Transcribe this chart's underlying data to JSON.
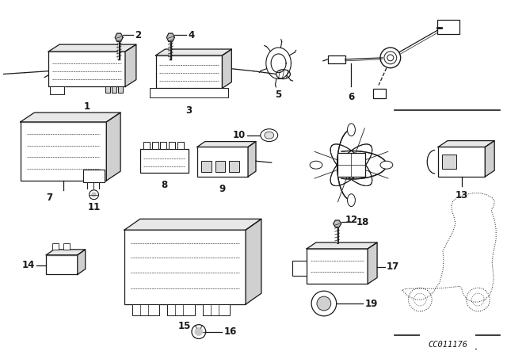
{
  "bg_color": "#ffffff",
  "line_color": "#1a1a1a",
  "fig_width": 6.4,
  "fig_height": 4.48,
  "dpi": 100,
  "code_text": "CC011176",
  "label_fs": 8.5,
  "label_bold": true
}
